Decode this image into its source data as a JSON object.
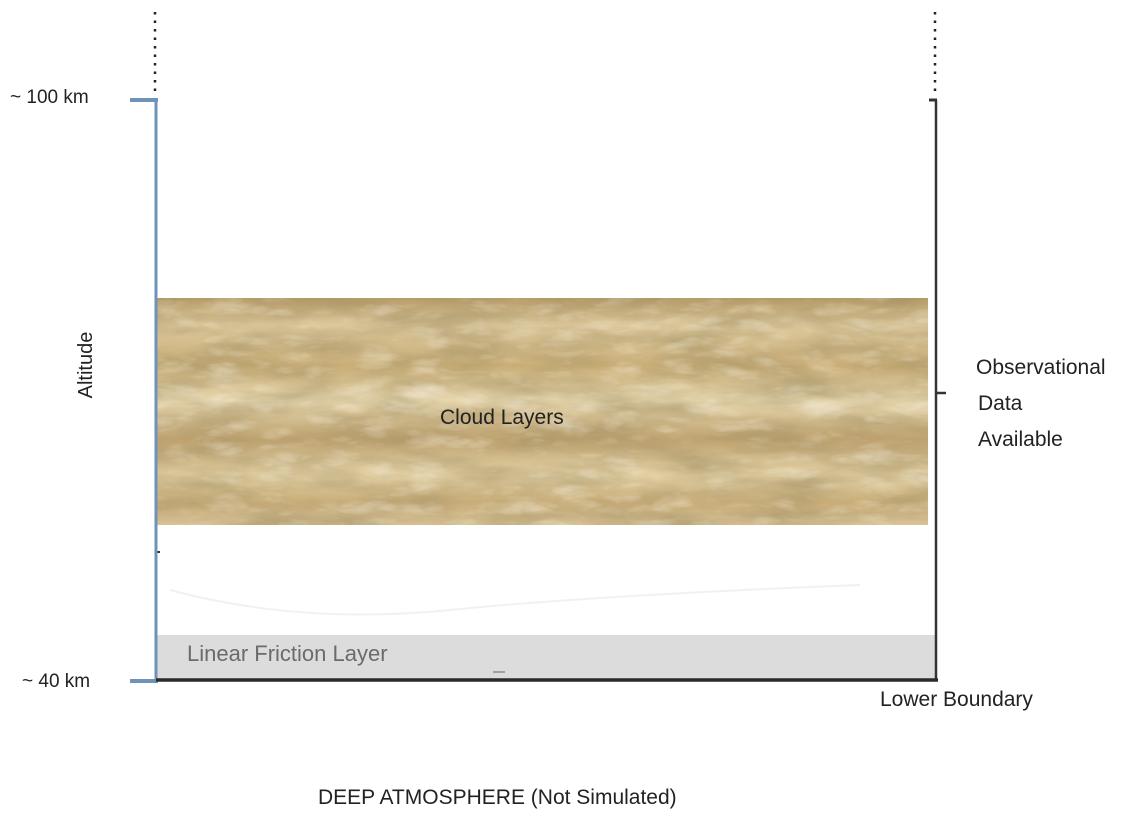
{
  "labels": {
    "top_altitude": "~ 100 km",
    "bottom_altitude": "~ 40 km",
    "axis": "Altitude",
    "observational_line1": "Observational",
    "observational_line2": "Data",
    "observational_line3": "Available",
    "cloud_layers": "Cloud Layers",
    "friction_layer": "Linear Friction Layer",
    "lower_boundary": "Lower Boundary",
    "deep_atmosphere": "DEEP ATMOSPHERE (Not Simulated)"
  },
  "colors": {
    "left_axis": "#6f93b8",
    "right_axis": "#333333",
    "cloud_base": "#c9b07a",
    "cloud_light": "#e8d9b0",
    "cloud_dark": "#a98e5a",
    "friction_fill": "#dcdcdc",
    "baseline": "#2a2a2a"
  }
}
